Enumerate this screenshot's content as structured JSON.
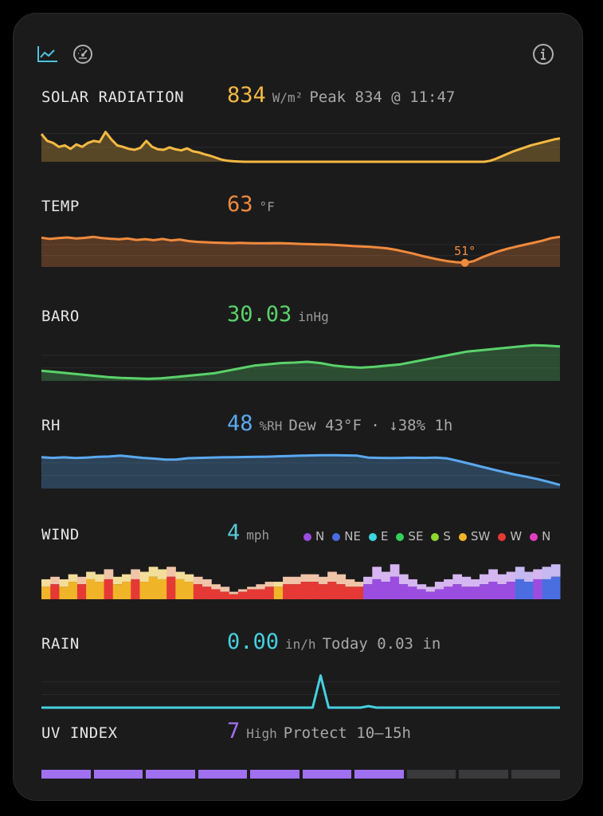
{
  "toolbar": {
    "icons": [
      "chart-line-icon",
      "gauge-icon",
      "info-icon"
    ],
    "active_color": "#4fc3dc"
  },
  "solar": {
    "label": "SOLAR RADIATION",
    "value": "834",
    "unit": "W/m²",
    "extra": "Peak 834 @ 11:47",
    "color": "#f5b942",
    "ylim": [
      0,
      850
    ],
    "values": [
      560,
      420,
      380,
      300,
      330,
      260,
      350,
      300,
      380,
      420,
      400,
      600,
      450,
      330,
      300,
      260,
      240,
      280,
      420,
      300,
      250,
      240,
      290,
      250,
      230,
      270,
      210,
      190,
      150,
      120,
      80,
      40,
      20,
      10,
      5,
      0,
      0,
      0,
      0,
      0,
      0,
      0,
      0,
      0,
      0,
      0,
      0,
      0,
      0,
      0,
      0,
      0,
      0,
      0,
      0,
      0,
      0,
      0,
      0,
      0,
      0,
      0,
      0,
      0,
      0,
      0,
      0,
      0,
      0,
      0,
      0,
      0,
      0,
      0,
      0,
      0,
      0,
      20,
      60,
      110,
      160,
      210,
      250,
      290,
      330,
      360,
      390,
      420,
      450,
      470
    ]
  },
  "temp": {
    "label": "TEMP",
    "value": "63",
    "unit": "°F",
    "color": "#f08a3c",
    "ylim": [
      49,
      65
    ],
    "min_label": "51°",
    "values": [
      63,
      62.4,
      62.8,
      63.1,
      62.6,
      62.9,
      63.4,
      62.8,
      62.5,
      62.2,
      62.6,
      61.9,
      62.3,
      61.8,
      62.4,
      61.7,
      62.1,
      61.4,
      61.0,
      60.8,
      60.6,
      60.5,
      60.4,
      60.5,
      60.4,
      60.3,
      60.3,
      60.4,
      60.3,
      60.2,
      60.0,
      59.9,
      59.8,
      59.7,
      59.5,
      59.3,
      59.0,
      58.8,
      58.6,
      58.3,
      57.9,
      57.2,
      56.3,
      55.4,
      54.3,
      53.4,
      52.5,
      51.8,
      51.3,
      51.0,
      51.8,
      53.6,
      55.2,
      56.6,
      57.8,
      58.8,
      59.7,
      60.6,
      61.6,
      62.8,
      63.4
    ]
  },
  "baro": {
    "label": "BARO",
    "value": "30.03",
    "unit": "inHg",
    "color": "#5ad26a",
    "ylim": [
      29.9,
      30.05
    ],
    "values": [
      29.94,
      29.935,
      29.93,
      29.925,
      29.92,
      29.915,
      29.912,
      29.91,
      29.908,
      29.91,
      29.915,
      29.92,
      29.925,
      29.93,
      29.94,
      29.95,
      29.96,
      29.965,
      29.97,
      29.972,
      29.975,
      29.97,
      29.96,
      29.955,
      29.952,
      29.955,
      29.96,
      29.965,
      29.975,
      29.985,
      29.995,
      30.005,
      30.015,
      30.02,
      30.025,
      30.03,
      30.035,
      30.04,
      30.038,
      30.035
    ]
  },
  "rh": {
    "label": "RH",
    "value": "48",
    "unit": "%RH",
    "extra": "Dew 43°F · ↓38% 1h",
    "color": "#5aa9f0",
    "ylim": [
      30,
      52
    ],
    "values": [
      48,
      47.6,
      47.9,
      47.5,
      47.8,
      48.2,
      48.4,
      48.9,
      48.3,
      47.6,
      47.2,
      46.6,
      46.7,
      47.4,
      47.6,
      47.8,
      47.9,
      48.0,
      48.1,
      48.2,
      48.3,
      48.5,
      48.7,
      48.9,
      49.0,
      49.1,
      49.1,
      49.0,
      48.9,
      47.8,
      47.6,
      47.5,
      47.6,
      47.7,
      47.6,
      47.8,
      47.3,
      45.8,
      44.2,
      42.6,
      41.0,
      39.5,
      38.0,
      36.8,
      35.4,
      33.8,
      32.0
    ]
  },
  "wind": {
    "label": "WIND",
    "value": "4",
    "unit": "mph",
    "color": "#5ac8d8",
    "ylim": [
      0,
      15
    ],
    "legend": [
      {
        "dir": "N",
        "color": "#9b4de0"
      },
      {
        "dir": "NE",
        "color": "#4a6ee0"
      },
      {
        "dir": "E",
        "color": "#3dd6e0"
      },
      {
        "dir": "SE",
        "color": "#34d058"
      },
      {
        "dir": "S",
        "color": "#8ed630"
      },
      {
        "dir": "SW",
        "color": "#f0b429"
      },
      {
        "dir": "W",
        "color": "#e53935"
      },
      {
        "dir": "N",
        "color": "#e040c0"
      }
    ],
    "speed": [
      5,
      6,
      5,
      7,
      6,
      8,
      7,
      8,
      6,
      7,
      8,
      7,
      9,
      8,
      9,
      8,
      7,
      6,
      5,
      4,
      3,
      2,
      3,
      4,
      4,
      5,
      5,
      6,
      6,
      7,
      7,
      6,
      7,
      6,
      5,
      5,
      6,
      8,
      7,
      9,
      6,
      5,
      4,
      3,
      4,
      5,
      6,
      5,
      5,
      6,
      7,
      6,
      7,
      8,
      7,
      8,
      8,
      9
    ],
    "gust": [
      8,
      9,
      8,
      10,
      9,
      11,
      10,
      12,
      9,
      10,
      12,
      11,
      13,
      12,
      13,
      11,
      10,
      9,
      8,
      6,
      5,
      3,
      4,
      5,
      6,
      7,
      7,
      9,
      9,
      10,
      10,
      9,
      11,
      10,
      8,
      7,
      9,
      13,
      11,
      14,
      10,
      8,
      6,
      5,
      7,
      8,
      10,
      9,
      8,
      10,
      12,
      10,
      11,
      13,
      11,
      12,
      13,
      14
    ],
    "dirs": [
      "SW",
      "W",
      "SW",
      "SW",
      "W",
      "SW",
      "SW",
      "W",
      "SW",
      "SW",
      "W",
      "SW",
      "SW",
      "SW",
      "W",
      "SW",
      "SW",
      "W",
      "W",
      "W",
      "W",
      "W",
      "W",
      "W",
      "W",
      "W",
      "SW",
      "W",
      "W",
      "W",
      "W",
      "W",
      "W",
      "W",
      "W",
      "W",
      "N",
      "N",
      "N",
      "N",
      "N",
      "N",
      "N",
      "N",
      "N",
      "N",
      "N",
      "N",
      "N",
      "N",
      "N",
      "N",
      "N",
      "NE",
      "NE",
      "N",
      "NE",
      "NE"
    ]
  },
  "rain": {
    "label": "RAIN",
    "value": "0.00",
    "unit": "in/h",
    "extra": "Today 0.03 in",
    "color": "#45d0e0",
    "ylim": [
      0,
      0.5
    ],
    "values": [
      0,
      0,
      0,
      0,
      0,
      0,
      0,
      0,
      0,
      0,
      0,
      0,
      0,
      0,
      0,
      0,
      0,
      0,
      0,
      0,
      0,
      0,
      0,
      0,
      0,
      0,
      0,
      0,
      0,
      0,
      0,
      0,
      0,
      0,
      0,
      0.42,
      0,
      0,
      0,
      0,
      0,
      0.02,
      0,
      0,
      0,
      0,
      0,
      0,
      0,
      0,
      0,
      0,
      0,
      0,
      0,
      0,
      0,
      0,
      0,
      0,
      0,
      0,
      0,
      0,
      0,
      0
    ]
  },
  "uv": {
    "label": "UV INDEX",
    "value": "7",
    "unit": "High",
    "extra": "Protect 10–15h",
    "color": "#a070f0",
    "level": 7,
    "max": 10
  }
}
